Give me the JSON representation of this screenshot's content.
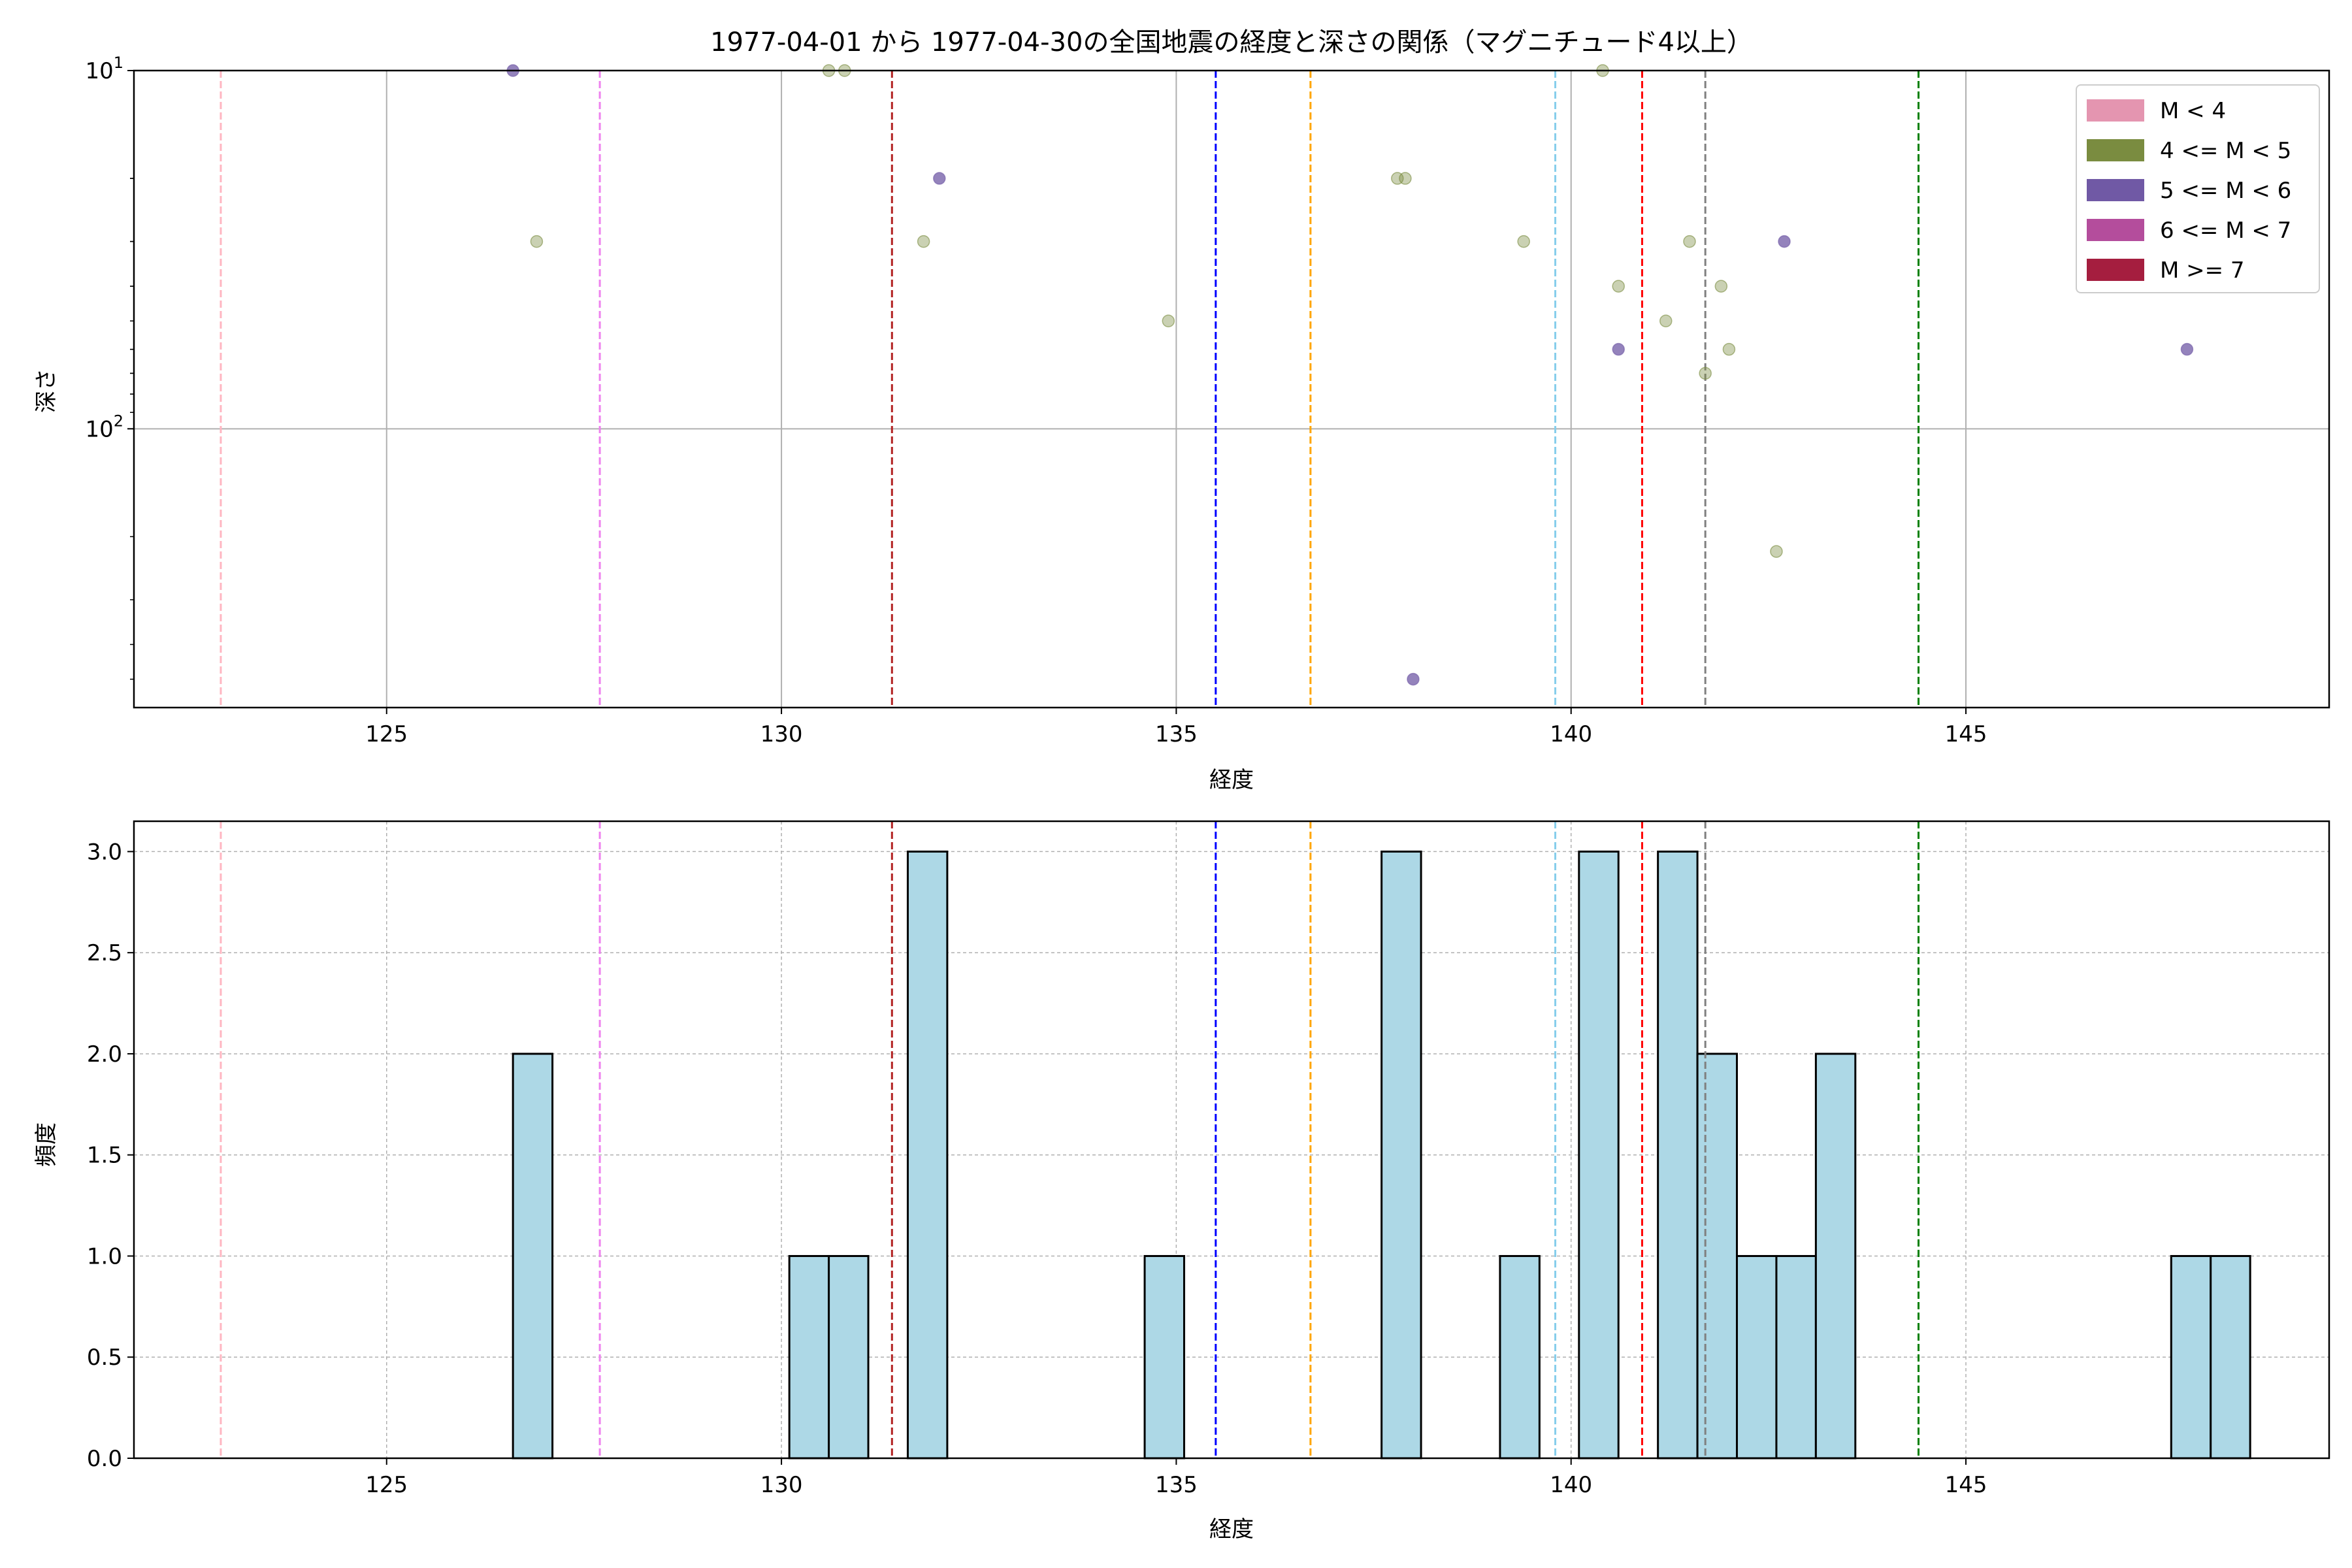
{
  "chart_data": [
    {
      "type": "scatter",
      "title": "1977-04-01 から 1977-04-30の全国地震の経度と深さの関係（マグニチュード4以上）",
      "xlabel": "経度",
      "ylabel": "深さ",
      "xlim": [
        121.8,
        149.6
      ],
      "ylim": [
        10,
        600
      ],
      "y_scale": "log",
      "y_inverted": true,
      "grid": true,
      "x_ticks": [
        125,
        130,
        135,
        140,
        145
      ],
      "y_ticks": [
        {
          "value": 10,
          "label": "10",
          "exp": "1"
        },
        {
          "value": 100,
          "label": "10",
          "exp": "2"
        }
      ],
      "legend": {
        "placement": "top-right",
        "entries": [
          {
            "label": "M < 4",
            "color": "#e495b0"
          },
          {
            "label": "4 <= M < 5",
            "color": "#7a8c40"
          },
          {
            "label": "5 <= M < 6",
            "color": "#7059a5"
          },
          {
            "label": "6 <= M < 7",
            "color": "#b44d9c"
          },
          {
            "label": "M >= 7",
            "color": "#a51e3f"
          }
        ]
      },
      "series": [
        {
          "name": "4 <= M < 5",
          "color": "#7a8c40",
          "points": [
            {
              "x": 126.9,
              "y": 30
            },
            {
              "x": 130.6,
              "y": 10
            },
            {
              "x": 130.8,
              "y": 10
            },
            {
              "x": 131.8,
              "y": 30
            },
            {
              "x": 134.9,
              "y": 50
            },
            {
              "x": 137.8,
              "y": 20
            },
            {
              "x": 137.9,
              "y": 20
            },
            {
              "x": 139.4,
              "y": 30
            },
            {
              "x": 140.4,
              "y": 10
            },
            {
              "x": 140.6,
              "y": 40
            },
            {
              "x": 141.2,
              "y": 50
            },
            {
              "x": 141.5,
              "y": 30
            },
            {
              "x": 141.7,
              "y": 70
            },
            {
              "x": 141.9,
              "y": 40
            },
            {
              "x": 142.0,
              "y": 60
            },
            {
              "x": 142.6,
              "y": 220
            }
          ]
        },
        {
          "name": "5 <= M < 6",
          "color": "#7059a5",
          "points": [
            {
              "x": 126.6,
              "y": 10
            },
            {
              "x": 132.0,
              "y": 20
            },
            {
              "x": 138.0,
              "y": 500
            },
            {
              "x": 140.6,
              "y": 60
            },
            {
              "x": 142.7,
              "y": 30
            },
            {
              "x": 147.8,
              "y": 60
            }
          ]
        }
      ],
      "vlines": [
        {
          "x": 122.9,
          "color": "#ffb6c1"
        },
        {
          "x": 127.7,
          "color": "#ee82ee"
        },
        {
          "x": 131.4,
          "color": "#b22222"
        },
        {
          "x": 135.5,
          "color": "#0000ff"
        },
        {
          "x": 136.7,
          "color": "#ffa500"
        },
        {
          "x": 139.8,
          "color": "#87ceeb"
        },
        {
          "x": 140.9,
          "color": "#ff0000"
        },
        {
          "x": 141.7,
          "color": "#808080"
        },
        {
          "x": 144.4,
          "color": "#008000"
        }
      ]
    },
    {
      "type": "bar",
      "xlabel": "経度",
      "ylabel": "頻度",
      "xlim": [
        121.8,
        149.6
      ],
      "ylim": [
        0,
        3.15
      ],
      "grid": true,
      "x_ticks": [
        125,
        130,
        135,
        140,
        145
      ],
      "y_ticks": [
        "0.0",
        "0.5",
        "1.0",
        "1.5",
        "2.0",
        "2.5",
        "3.0"
      ],
      "bar_color": "#add8e6",
      "bar_edge": "#000000",
      "bin_width": 0.5,
      "bins": [
        {
          "x": 126.6,
          "count": 2
        },
        {
          "x": 130.1,
          "count": 1
        },
        {
          "x": 130.6,
          "count": 1
        },
        {
          "x": 131.6,
          "count": 3
        },
        {
          "x": 134.6,
          "count": 1
        },
        {
          "x": 137.6,
          "count": 3
        },
        {
          "x": 139.1,
          "count": 1
        },
        {
          "x": 140.1,
          "count": 3
        },
        {
          "x": 141.1,
          "count": 3
        },
        {
          "x": 141.6,
          "count": 2
        },
        {
          "x": 142.1,
          "count": 1
        },
        {
          "x": 142.6,
          "count": 1
        },
        {
          "x": 143.1,
          "count": 2
        },
        {
          "x": 147.6,
          "count": 1
        },
        {
          "x": 148.1,
          "count": 1
        }
      ],
      "vlines": [
        {
          "x": 122.9,
          "color": "#ffb6c1"
        },
        {
          "x": 127.7,
          "color": "#ee82ee"
        },
        {
          "x": 131.4,
          "color": "#b22222"
        },
        {
          "x": 135.5,
          "color": "#0000ff"
        },
        {
          "x": 136.7,
          "color": "#ffa500"
        },
        {
          "x": 139.8,
          "color": "#87ceeb"
        },
        {
          "x": 140.9,
          "color": "#ff0000"
        },
        {
          "x": 141.7,
          "color": "#808080"
        },
        {
          "x": 144.4,
          "color": "#008000"
        }
      ]
    }
  ]
}
